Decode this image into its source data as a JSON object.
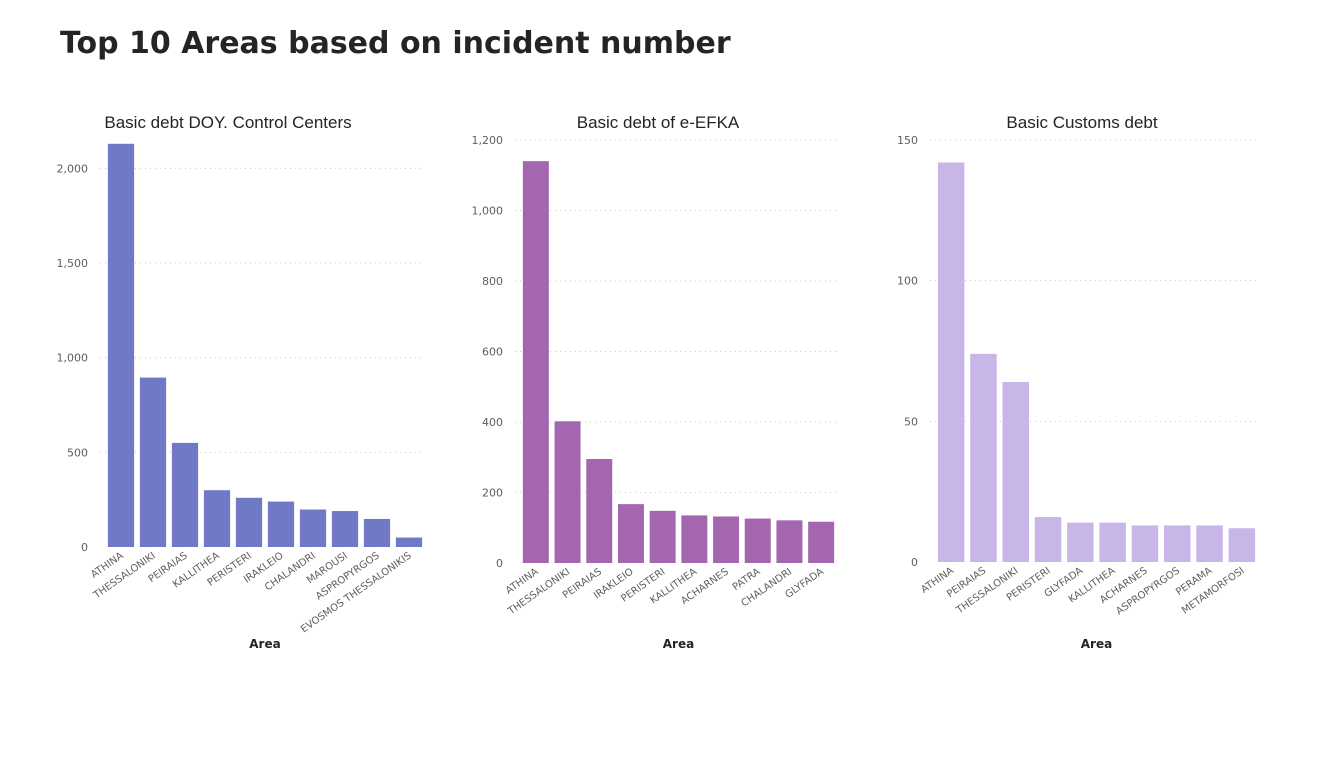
{
  "page": {
    "title": "Top 10 Areas based on incident number"
  },
  "chart_data": [
    {
      "type": "bar",
      "title": "Basic debt DOY. Control Centers",
      "xlabel": "Area",
      "ylabel": "",
      "color": "#7079c6",
      "ylim": [
        0,
        2150
      ],
      "yticks": [
        0,
        500,
        1000,
        1500,
        2000
      ],
      "ytick_labels": [
        "0",
        "500",
        "1,000",
        "1,500",
        "2,000"
      ],
      "grid": true,
      "categories": [
        "ATHINA",
        "THESSALONIKI",
        "PEIRAIAS",
        "KALLITHEA",
        "PERISTERI",
        "IRAKLEIO",
        "CHALANDRI",
        "MAROUSI",
        "ASPROPYRGOS",
        "EVOSMOS THESSALONIKIS"
      ],
      "values": [
        2130,
        895,
        550,
        300,
        260,
        240,
        198,
        190,
        148,
        50
      ]
    },
    {
      "type": "bar",
      "title": "Basic debt of e-EFKA",
      "xlabel": "Area",
      "ylabel": "",
      "color": "#a566b0",
      "ylim": [
        0,
        1200
      ],
      "yticks": [
        0,
        200,
        400,
        600,
        800,
        1000,
        1200
      ],
      "ytick_labels": [
        "0",
        "200",
        "400",
        "600",
        "800",
        "1,000",
        "1,200"
      ],
      "grid": true,
      "categories": [
        "ATHINA",
        "THESSALONIKI",
        "PEIRAIAS",
        "IRAKLEIO",
        "PERISTERI",
        "KALLITHEA",
        "ACHARNES",
        "PATRA",
        "CHALANDRI",
        "GLYFADA"
      ],
      "values": [
        1140,
        402,
        295,
        167,
        148,
        135,
        132,
        126,
        121,
        117
      ]
    },
    {
      "type": "bar",
      "title": "Basic Customs debt",
      "xlabel": "Area",
      "ylabel": "",
      "color": "#c8b6e8",
      "ylim": [
        0,
        150
      ],
      "yticks": [
        0,
        50,
        100,
        150
      ],
      "ytick_labels": [
        "0",
        "50",
        "100",
        "150"
      ],
      "grid": true,
      "categories": [
        "ATHINA",
        "PEIRAIAS",
        "THESSALONIKI",
        "PERISTERI",
        "GLYFADA",
        "KALLITHEA",
        "ACHARNES",
        "ASPROPYRGOS",
        "PERAMA",
        "METAMORFOSI"
      ],
      "values": [
        142,
        74,
        64,
        16,
        14,
        14,
        13,
        13,
        13,
        12
      ]
    }
  ]
}
